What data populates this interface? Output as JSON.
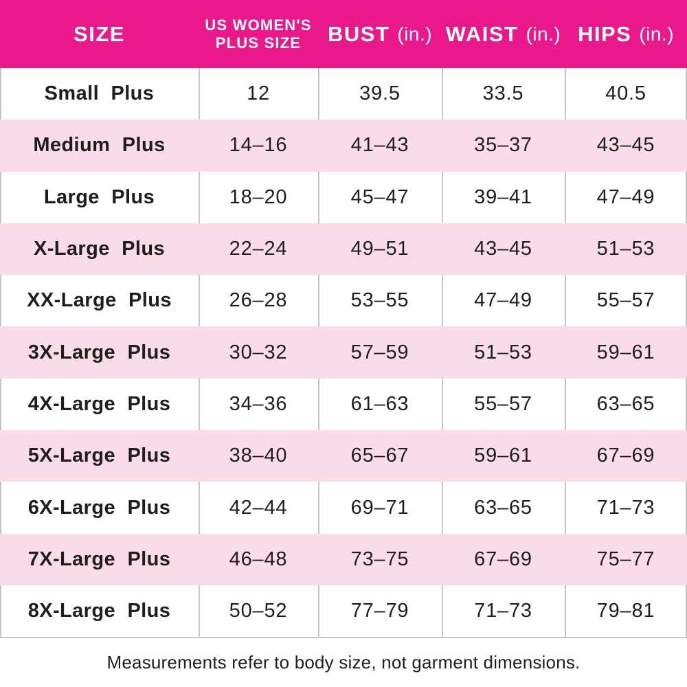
{
  "colors": {
    "header_bg": "#EB188C",
    "row_alt_bg": "#FADCE9",
    "grid_line": "#C6C6C6",
    "header_text": "#FFFFFF",
    "body_text": "#1E1E1E"
  },
  "header": {
    "col_size": "SIZE",
    "col_plus_line1": "US WOMEN'S",
    "col_plus_line2": "PLUS SIZE",
    "col_bust": "BUST",
    "col_waist": "WAIST",
    "col_hips": "HIPS",
    "unit": "(in.)"
  },
  "footer": {
    "note": "Measurements refer to body size, not garment dimensions."
  },
  "chart_data": {
    "type": "table",
    "columns": [
      "SIZE",
      "US WOMEN'S PLUS SIZE",
      "BUST (in.)",
      "WAIST (in.)",
      "HIPS (in.)"
    ],
    "rows": [
      [
        "Small Plus",
        "12",
        "39.5",
        "33.5",
        "40.5"
      ],
      [
        "Medium Plus",
        "14–16",
        "41–43",
        "35–37",
        "43–45"
      ],
      [
        "Large Plus",
        "18–20",
        "45–47",
        "39–41",
        "47–49"
      ],
      [
        "X-Large Plus",
        "22–24",
        "49–51",
        "43–45",
        "51–53"
      ],
      [
        "XX-Large Plus",
        "26–28",
        "53–55",
        "47–49",
        "55–57"
      ],
      [
        "3X-Large Plus",
        "30–32",
        "57–59",
        "51–53",
        "59–61"
      ],
      [
        "4X-Large Plus",
        "34–36",
        "61–63",
        "55–57",
        "63–65"
      ],
      [
        "5X-Large Plus",
        "38–40",
        "65–67",
        "59–61",
        "67–69"
      ],
      [
        "6X-Large Plus",
        "42–44",
        "69–71",
        "63–65",
        "71–73"
      ],
      [
        "7X-Large Plus",
        "46–48",
        "73–75",
        "67–69",
        "75–77"
      ],
      [
        "8X-Large Plus",
        "50–52",
        "77–79",
        "71–73",
        "79–81"
      ]
    ],
    "note": "Measurements refer to body size, not garment dimensions.",
    "row_striping": "alternating white / light pink, starting white"
  }
}
